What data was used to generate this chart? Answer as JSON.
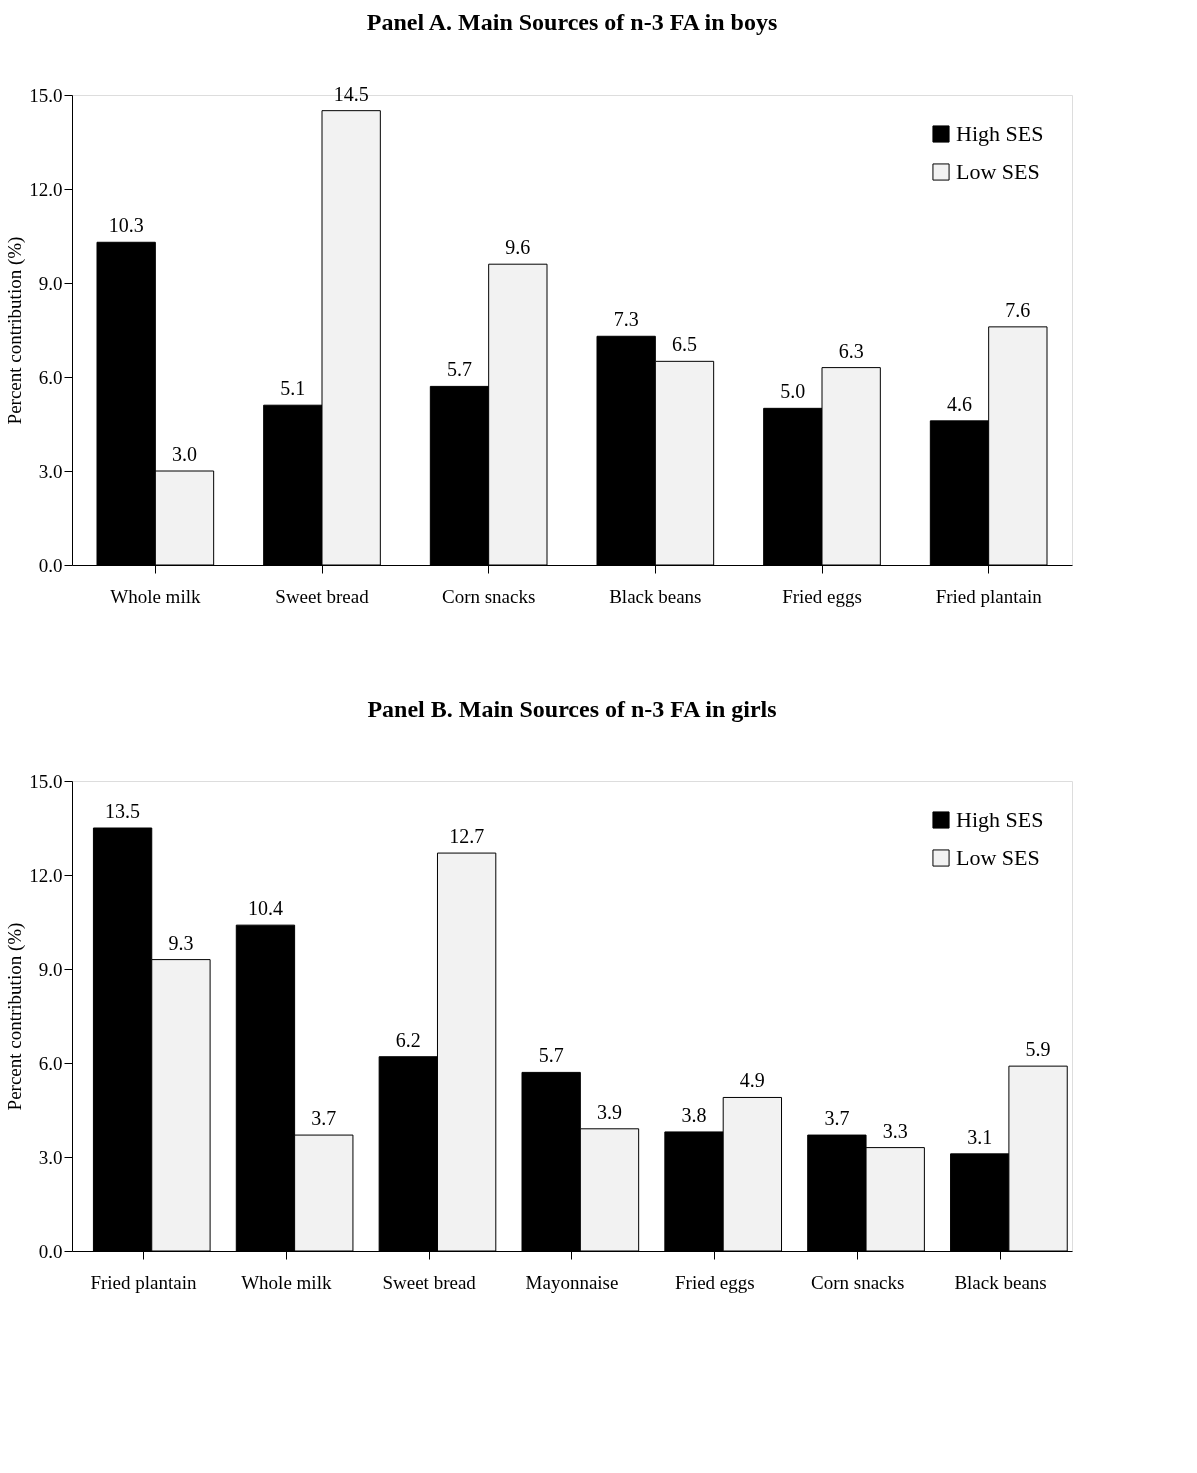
{
  "chart_data": [
    {
      "type": "bar",
      "title": "Panel A.    Main Sources of n-3 FA in boys",
      "ylabel": "Percent contribution (%)",
      "categories": [
        "Whole milk",
        "Sweet bread",
        "Corn snacks",
        "Black beans",
        "Fried eggs",
        "Fried plantain"
      ],
      "series": [
        {
          "name": "High SES",
          "color": "#000000",
          "values": [
            10.3,
            5.1,
            5.7,
            7.3,
            5.0,
            4.6
          ],
          "value_labels": [
            "10.3",
            "5.1",
            "5.7",
            "7.3",
            "5.0",
            "4.6"
          ]
        },
        {
          "name": "Low SES",
          "color": "#f2f2f2",
          "values": [
            3.0,
            14.5,
            9.6,
            6.5,
            6.3,
            7.6
          ],
          "value_labels": [
            "3.0",
            "14.5",
            "9.6",
            "6.5",
            "6.3",
            "7.6"
          ]
        }
      ],
      "ylim": [
        0,
        15
      ],
      "yticks": [
        {
          "value": 0,
          "label": "0.0"
        },
        {
          "value": 3,
          "label": "3.0"
        },
        {
          "value": 6,
          "label": "6.0"
        },
        {
          "value": 9,
          "label": "9.0"
        },
        {
          "value": 12,
          "label": "12.0"
        },
        {
          "value": 15,
          "label": "15.0"
        }
      ],
      "legend": "top right"
    },
    {
      "type": "bar",
      "title": "Panel B.    Main Sources of n-3 FA in girls",
      "ylabel": "Percent contribution (%)",
      "categories": [
        "Fried plantain",
        "Whole milk",
        "Sweet bread",
        "Mayonnaise",
        "Fried eggs",
        "Corn snacks",
        "Black beans"
      ],
      "series": [
        {
          "name": "High SES",
          "color": "#000000",
          "values": [
            13.5,
            10.4,
            6.2,
            5.7,
            3.8,
            3.7,
            3.1
          ],
          "value_labels": [
            "13.5",
            "10.4",
            "6.2",
            "5.7",
            "3.8",
            "3.7",
            "3.1"
          ]
        },
        {
          "name": "Low SES",
          "color": "#f2f2f2",
          "values": [
            9.3,
            3.7,
            12.7,
            3.9,
            4.9,
            3.3,
            5.9
          ],
          "value_labels": [
            "9.3",
            "3.7",
            "12.7",
            "3.9",
            "4.9",
            "3.3",
            "5.9"
          ]
        }
      ],
      "ylim": [
        0,
        15
      ],
      "yticks": [
        {
          "value": 0,
          "label": "0.0"
        },
        {
          "value": 3,
          "label": "3.0"
        },
        {
          "value": 6,
          "label": "6.0"
        },
        {
          "value": 9,
          "label": "9.0"
        },
        {
          "value": 12,
          "label": "12.0"
        },
        {
          "value": 15,
          "label": "15.0"
        }
      ],
      "legend": "top right"
    }
  ]
}
